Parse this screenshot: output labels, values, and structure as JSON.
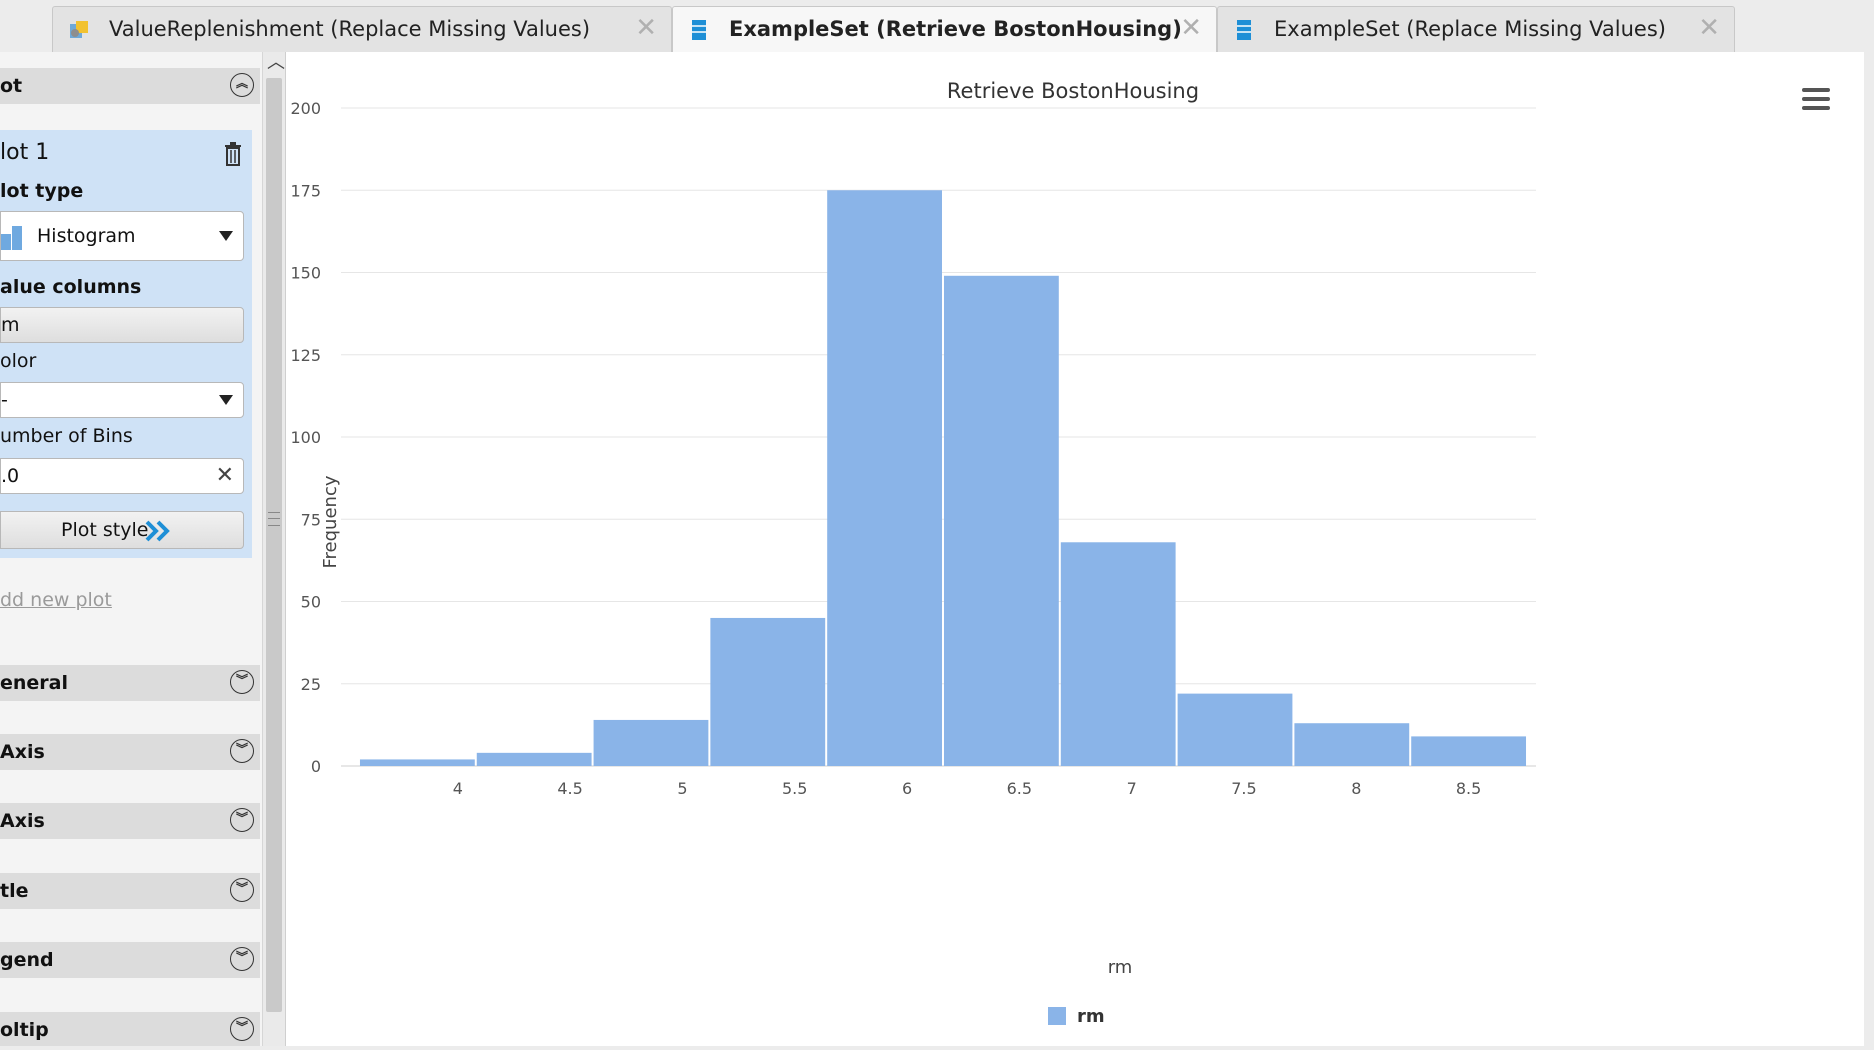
{
  "tabs": [
    {
      "label": "ValueReplenishment (Replace Missing Values)",
      "active": false,
      "icon": "process-icon"
    },
    {
      "label": "ExampleSet (Retrieve BostonHousing)",
      "active": true,
      "icon": "exampleset-icon"
    },
    {
      "label": "ExampleSet (Replace Missing Values)",
      "active": false,
      "icon": "exampleset-icon"
    }
  ],
  "left_panel": {
    "plot_section": "ot",
    "plot_name": "lot 1",
    "plot_type_label": "lot type",
    "plot_type_value": "Histogram",
    "value_columns_label": "alue columns",
    "value_columns_value": "m",
    "color_label": "olor",
    "color_value": "-",
    "bins_label": "umber of Bins",
    "bins_value": ".0",
    "plot_style_label": "Plot style",
    "add_new_plot": "dd new plot",
    "sections": [
      "eneral",
      "Axis",
      "Axis",
      "tle",
      "gend",
      "oltip"
    ]
  },
  "colors": {
    "bar": "#8ab4e8",
    "accent": "#1e8fd6"
  },
  "chart_data": {
    "type": "bar",
    "title": "Retrieve BostonHousing",
    "xlabel": "rm",
    "ylabel": "Frequency",
    "ylim": [
      0,
      200
    ],
    "yticks": [
      0,
      25,
      50,
      75,
      100,
      125,
      150,
      175,
      200
    ],
    "xticks": [
      "4",
      "4.5",
      "5",
      "5.5",
      "6",
      "6.5",
      "7",
      "7.5",
      "8",
      "8.5"
    ],
    "bins": [
      {
        "from": 3.56,
        "to": 4.08,
        "value": 2
      },
      {
        "from": 4.08,
        "to": 4.6,
        "value": 4
      },
      {
        "from": 4.6,
        "to": 5.12,
        "value": 14
      },
      {
        "from": 5.12,
        "to": 5.64,
        "value": 45
      },
      {
        "from": 5.64,
        "to": 6.16,
        "value": 175
      },
      {
        "from": 6.16,
        "to": 6.68,
        "value": 149
      },
      {
        "from": 6.68,
        "to": 7.2,
        "value": 68
      },
      {
        "from": 7.2,
        "to": 7.72,
        "value": 22
      },
      {
        "from": 7.72,
        "to": 8.24,
        "value": 13
      },
      {
        "from": 8.24,
        "to": 8.76,
        "value": 9
      }
    ],
    "legend": [
      {
        "name": "rm"
      }
    ],
    "legend_position": "bottom-center",
    "grid": true
  }
}
